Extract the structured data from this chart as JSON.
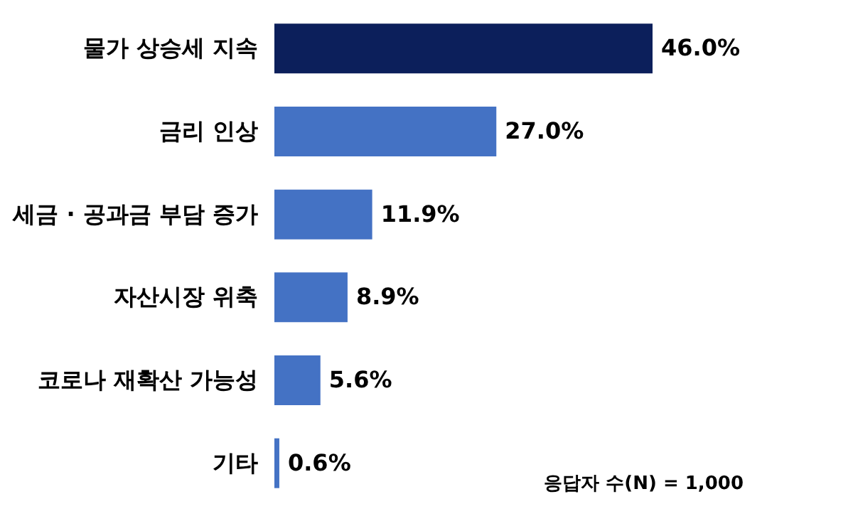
{
  "chart_data": {
    "type": "bar",
    "orientation": "horizontal",
    "categories": [
      "물가 상승세 지속",
      "금리 인상",
      "세금 · 공과금 부담 증가",
      "자산시장 위축",
      "코로나 재확산 가능성",
      "기타"
    ],
    "values": [
      46.0,
      27.0,
      11.9,
      8.9,
      5.6,
      0.6
    ],
    "colors": [
      "#0c1f5b",
      "#4472c4",
      "#4472c4",
      "#4472c4",
      "#4472c4",
      "#4472c4"
    ],
    "value_labels": [
      "46.0%",
      "27.0%",
      "11.9%",
      "8.9%",
      "5.6%",
      "0.6%"
    ],
    "annotations": [
      "응답자 수(N) = 1,000"
    ]
  }
}
